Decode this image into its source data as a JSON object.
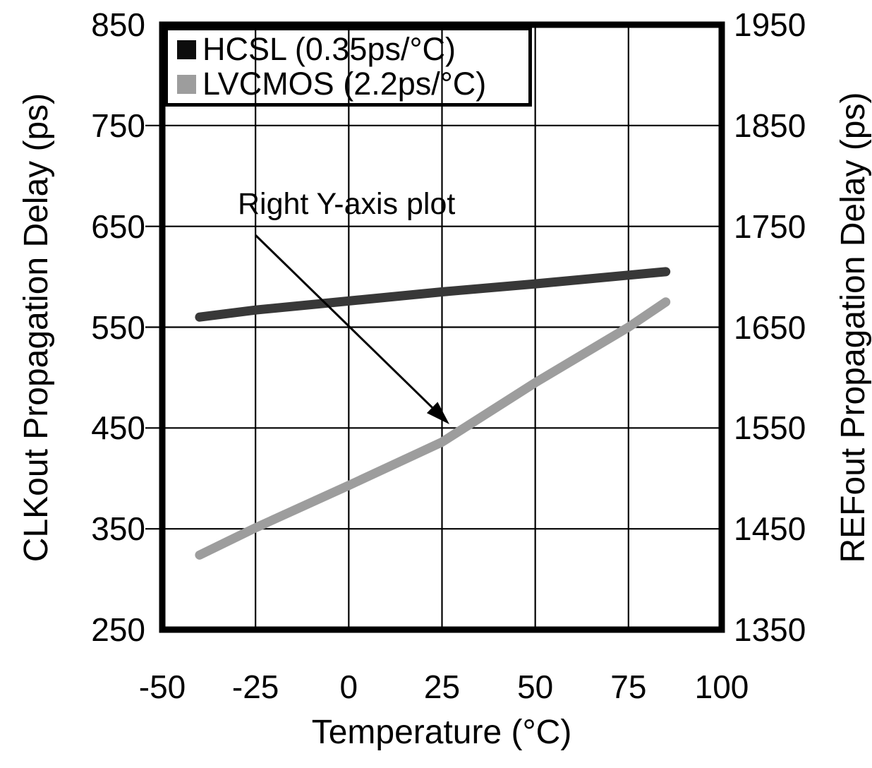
{
  "chart_data": {
    "type": "line",
    "xlabel": "Temperature (°C)",
    "ylabel_left": "CLKout Propagation Delay (ps)",
    "ylabel_right": "REFout Propagation Delay (ps)",
    "x_axis": {
      "min": -50,
      "max": 100,
      "ticks": [
        -50,
        -25,
        0,
        25,
        50,
        75,
        100
      ]
    },
    "y_axis_left": {
      "min": 250,
      "max": 850,
      "ticks": [
        250,
        350,
        450,
        550,
        650,
        750,
        850
      ]
    },
    "y_axis_right": {
      "min": 1350,
      "max": 1950,
      "ticks": [
        1350,
        1450,
        1550,
        1650,
        1750,
        1850,
        1950
      ]
    },
    "grid": true,
    "legend_position": "top-left",
    "series": [
      {
        "name": "HCSL (0.35ps/°C)",
        "axis": "left",
        "line_color": "#383838",
        "marker_color": "#0d0d0d",
        "points": [
          [
            -40,
            560
          ],
          [
            -25,
            567
          ],
          [
            0,
            576
          ],
          [
            25,
            585
          ],
          [
            50,
            593
          ],
          [
            85,
            605
          ]
        ]
      },
      {
        "name": "LVCMOS (2.2ps/°C)",
        "axis": "right",
        "line_color": "#9d9d9d",
        "marker_color": "#9d9d9d",
        "points": [
          [
            -40,
            1424
          ],
          [
            -25,
            1451
          ],
          [
            0,
            1493
          ],
          [
            25,
            1536
          ],
          [
            50,
            1595
          ],
          [
            75,
            1650
          ],
          [
            85,
            1675
          ]
        ]
      }
    ],
    "annotation": {
      "text": "Right Y-axis plot",
      "arrow_points_to_series": "LVCMOS (2.2ps/°C)"
    }
  },
  "colors": {
    "axis": "#000000",
    "grid": "#000000",
    "background": "#ffffff"
  }
}
